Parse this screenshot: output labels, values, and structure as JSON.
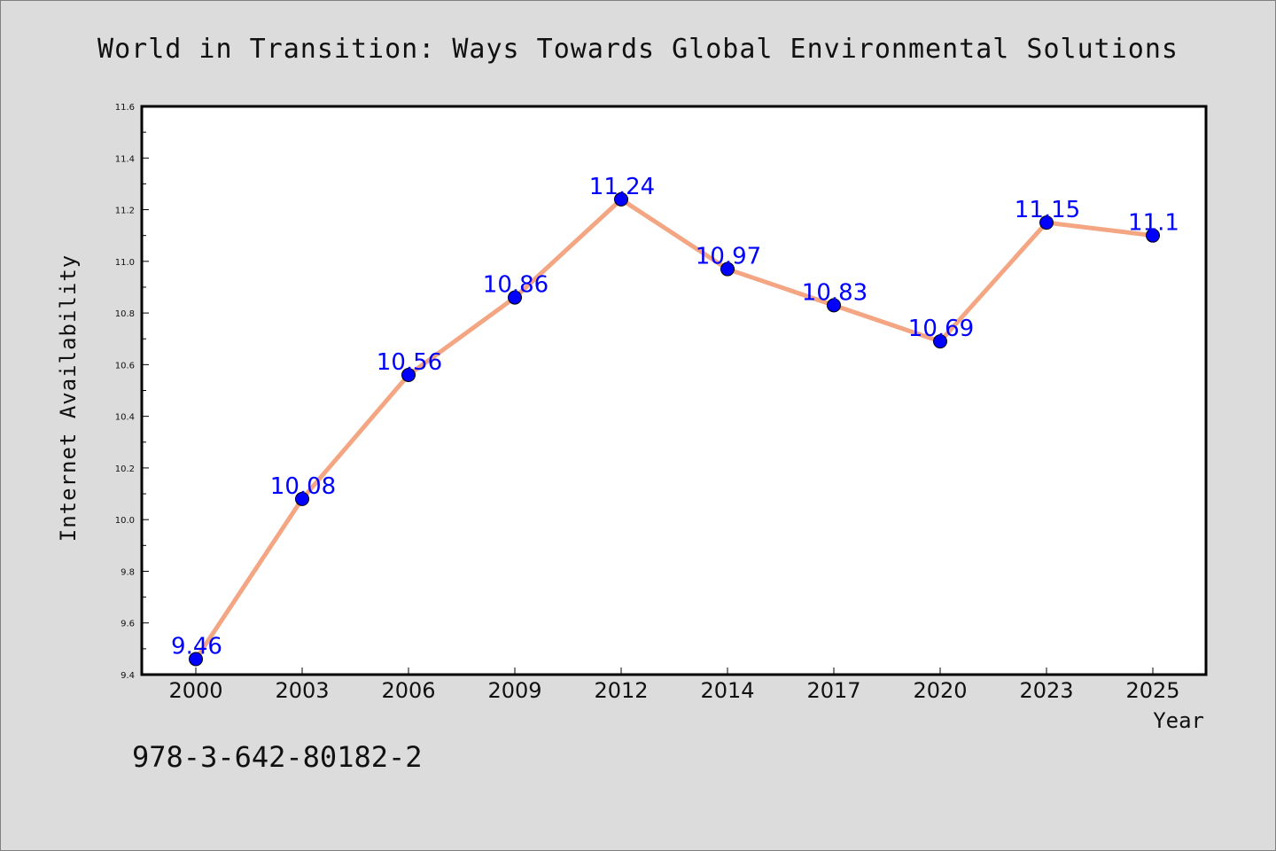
{
  "chart_data": {
    "type": "line",
    "title": "World in Transition: Ways Towards Global Environmental Solutions",
    "xlabel": "Year",
    "ylabel": "Internet Availability",
    "categories": [
      "2000",
      "2003",
      "2006",
      "2009",
      "2012",
      "2014",
      "2017",
      "2020",
      "2023",
      "2025"
    ],
    "series": [
      {
        "values": [
          9.46,
          10.08,
          10.56,
          10.86,
          11.24,
          10.97,
          10.83,
          10.69,
          11.15,
          11.1
        ]
      }
    ],
    "data_labels": [
      "9.46",
      "10.08",
      "10.56",
      "10.86",
      "11.24",
      "10.97",
      "10.83",
      "10.69",
      "11.15",
      "11.1"
    ],
    "ylim": [
      9.4,
      11.6
    ],
    "yticks": [
      "9.4",
      "9.6",
      "9.8",
      "10.0",
      "10.2",
      "10.4",
      "10.6",
      "10.8",
      "11.0",
      "11.2",
      "11.4",
      "11.6"
    ],
    "grid": false,
    "colors": {
      "line": "#f4a582",
      "marker": "#0000ff",
      "label": "#0000ff"
    }
  },
  "footer": {
    "isbn": "978-3-642-80182-2"
  }
}
